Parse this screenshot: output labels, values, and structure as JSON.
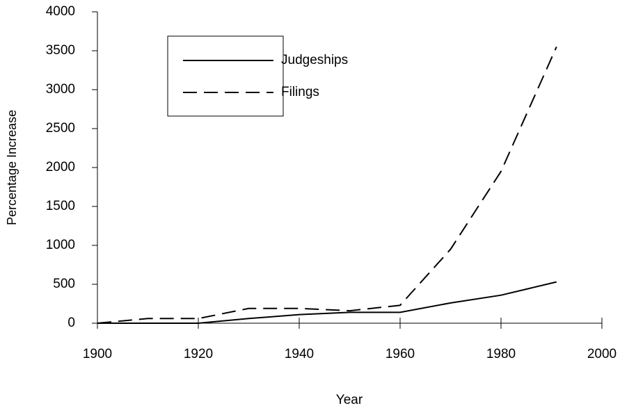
{
  "chart_data": {
    "type": "line",
    "x": [
      1900,
      1910,
      1920,
      1930,
      1940,
      1950,
      1960,
      1970,
      1980,
      1991
    ],
    "series": [
      {
        "name": "Judgeships",
        "color": "#000000",
        "line_style": "solid",
        "values": [
          0,
          0,
          0,
          60,
          110,
          140,
          140,
          260,
          360,
          530
        ]
      },
      {
        "name": "Filings",
        "color": "#000000",
        "line_style": "dashed",
        "values": [
          0,
          60,
          60,
          190,
          190,
          160,
          230,
          950,
          1950,
          3550
        ]
      }
    ],
    "xlabel": "Year",
    "ylabel": "Percentage Increase",
    "xlim": [
      1900,
      2000
    ],
    "xticks": [
      1900,
      1920,
      1940,
      1960,
      1980,
      2000
    ],
    "ylim": [
      0,
      4000
    ],
    "yticks": [
      0,
      500,
      1000,
      1500,
      2000,
      2500,
      3000,
      3500,
      4000
    ],
    "legend": "upper left",
    "grid": false
  }
}
